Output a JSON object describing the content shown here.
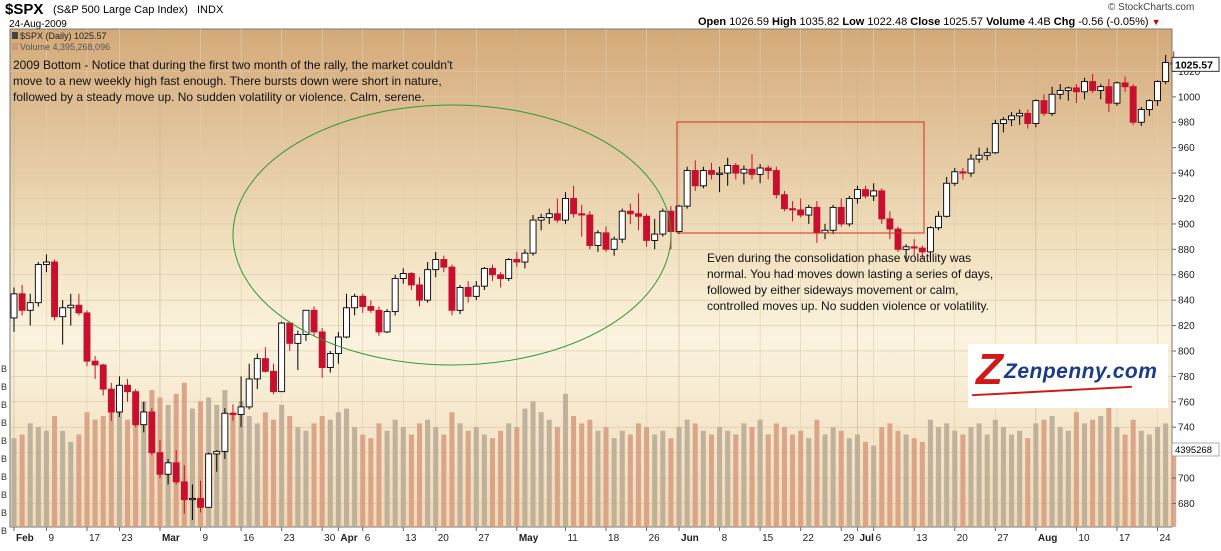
{
  "header": {
    "symbol": "$SPX",
    "name": "(S&P 500 Large Cap Index)",
    "exchange": "INDX",
    "date": "24-Aug-2009",
    "watermark": "© StockCharts.com",
    "open_label": "Open",
    "open": "1026.59",
    "high_label": "High",
    "high": "1035.82",
    "low_label": "Low",
    "low": "1022.48",
    "close_label": "Close",
    "close": "1025.57",
    "volume_label": "Volume",
    "volume": "4.4B",
    "chg_label": "Chg",
    "chg": "-0.56 (-0.05%)"
  },
  "legend": {
    "price_line": "$SPX (Daily) 1025.57",
    "volume_line": "Volume 4,395,268,096"
  },
  "annotations": {
    "bottom_note": "2009 Bottom - Notice that during the first two month of the rally, the market couldn't move to a new weekly high fast enough. There bursts down were short in nature, followed by a steady move up. No sudden volatility or violence. Calm, serene.",
    "consolidation_note": "Even during the consolidation phase volatility was normal. You had moves down lasting a series of days, followed by either sideways movement or calm, controlled moves up. No sudden violence or volatility."
  },
  "logo": {
    "text": "Zenpenny.com"
  },
  "chart_data": {
    "type": "candlestick",
    "y_ticks": [
      680,
      700,
      720,
      740,
      760,
      780,
      800,
      820,
      840,
      860,
      880,
      900,
      920,
      940,
      960,
      980,
      1000,
      1020
    ],
    "ylim": [
      667,
      1040
    ],
    "last_price_label": "1025.57",
    "volume_label": "4395268",
    "volume_axis_labels": [
      "B",
      "B",
      "B",
      "B",
      "B",
      "B",
      "B",
      "B",
      "B",
      "B"
    ],
    "x_tick_labels": [
      {
        "label": "Feb",
        "bold": true,
        "i": 0
      },
      {
        "label": "9",
        "bold": false,
        "i": 4
      },
      {
        "label": "17",
        "bold": false,
        "i": 9
      },
      {
        "label": "23",
        "bold": false,
        "i": 13
      },
      {
        "label": "Mar",
        "bold": true,
        "i": 18
      },
      {
        "label": "9",
        "bold": false,
        "i": 23
      },
      {
        "label": "16",
        "bold": false,
        "i": 28
      },
      {
        "label": "23",
        "bold": false,
        "i": 33
      },
      {
        "label": "30",
        "bold": false,
        "i": 38
      },
      {
        "label": "Apr",
        "bold": true,
        "i": 40
      },
      {
        "label": "6",
        "bold": false,
        "i": 43
      },
      {
        "label": "13",
        "bold": false,
        "i": 48
      },
      {
        "label": "20",
        "bold": false,
        "i": 52
      },
      {
        "label": "27",
        "bold": false,
        "i": 57
      },
      {
        "label": "May",
        "bold": true,
        "i": 62
      },
      {
        "label": "11",
        "bold": false,
        "i": 68
      },
      {
        "label": "18",
        "bold": false,
        "i": 73
      },
      {
        "label": "26",
        "bold": false,
        "i": 78
      },
      {
        "label": "Jun",
        "bold": true,
        "i": 82
      },
      {
        "label": "8",
        "bold": false,
        "i": 87
      },
      {
        "label": "15",
        "bold": false,
        "i": 92
      },
      {
        "label": "22",
        "bold": false,
        "i": 97
      },
      {
        "label": "29",
        "bold": false,
        "i": 102
      },
      {
        "label": "Jul",
        "bold": true,
        "i": 104
      },
      {
        "label": "6",
        "bold": false,
        "i": 106
      },
      {
        "label": "13",
        "bold": false,
        "i": 111
      },
      {
        "label": "20",
        "bold": false,
        "i": 116
      },
      {
        "label": "27",
        "bold": false,
        "i": 121
      },
      {
        "label": "Aug",
        "bold": true,
        "i": 126
      },
      {
        "label": "10",
        "bold": false,
        "i": 131
      },
      {
        "label": "17",
        "bold": false,
        "i": 136
      },
      {
        "label": "24",
        "bold": false,
        "i": 141
      }
    ],
    "candles": [
      {
        "o": 826,
        "h": 850,
        "l": 815,
        "c": 845,
        "v": 4.8
      },
      {
        "o": 845,
        "h": 852,
        "l": 828,
        "c": 832,
        "v": 5.0
      },
      {
        "o": 832,
        "h": 845,
        "l": 820,
        "c": 838,
        "v": 5.6
      },
      {
        "o": 838,
        "h": 870,
        "l": 835,
        "c": 868,
        "v": 5.4
      },
      {
        "o": 868,
        "h": 876,
        "l": 862,
        "c": 870,
        "v": 5.2
      },
      {
        "o": 870,
        "h": 872,
        "l": 824,
        "c": 827,
        "v": 6.0
      },
      {
        "o": 827,
        "h": 840,
        "l": 805,
        "c": 834,
        "v": 5.2
      },
      {
        "o": 834,
        "h": 845,
        "l": 820,
        "c": 836,
        "v": 4.6
      },
      {
        "o": 836,
        "h": 845,
        "l": 828,
        "c": 830,
        "v": 5.0
      },
      {
        "o": 830,
        "h": 832,
        "l": 788,
        "c": 792,
        "v": 6.2
      },
      {
        "o": 792,
        "h": 796,
        "l": 778,
        "c": 789,
        "v": 5.8
      },
      {
        "o": 789,
        "h": 790,
        "l": 765,
        "c": 770,
        "v": 6.0
      },
      {
        "o": 770,
        "h": 775,
        "l": 745,
        "c": 752,
        "v": 7.0
      },
      {
        "o": 752,
        "h": 780,
        "l": 748,
        "c": 773,
        "v": 6.2
      },
      {
        "o": 773,
        "h": 778,
        "l": 760,
        "c": 768,
        "v": 5.8
      },
      {
        "o": 768,
        "h": 770,
        "l": 740,
        "c": 742,
        "v": 6.4
      },
      {
        "o": 742,
        "h": 760,
        "l": 736,
        "c": 752,
        "v": 6.8
      },
      {
        "o": 752,
        "h": 755,
        "l": 718,
        "c": 720,
        "v": 7.4
      },
      {
        "o": 720,
        "h": 730,
        "l": 700,
        "c": 703,
        "v": 7.0
      },
      {
        "o": 703,
        "h": 715,
        "l": 695,
        "c": 712,
        "v": 6.6
      },
      {
        "o": 712,
        "h": 722,
        "l": 695,
        "c": 697,
        "v": 7.2
      },
      {
        "o": 697,
        "h": 710,
        "l": 672,
        "c": 683,
        "v": 7.8
      },
      {
        "o": 683,
        "h": 695,
        "l": 667,
        "c": 684,
        "v": 6.4
      },
      {
        "o": 684,
        "h": 698,
        "l": 673,
        "c": 677,
        "v": 6.8
      },
      {
        "o": 677,
        "h": 720,
        "l": 677,
        "c": 719,
        "v": 7.0
      },
      {
        "o": 719,
        "h": 722,
        "l": 705,
        "c": 721,
        "v": 6.6
      },
      {
        "o": 721,
        "h": 755,
        "l": 715,
        "c": 751,
        "v": 7.4
      },
      {
        "o": 751,
        "h": 758,
        "l": 745,
        "c": 750,
        "v": 6.2
      },
      {
        "o": 750,
        "h": 780,
        "l": 740,
        "c": 756,
        "v": 6.8
      },
      {
        "o": 756,
        "h": 790,
        "l": 754,
        "c": 778,
        "v": 6.0
      },
      {
        "o": 778,
        "h": 798,
        "l": 770,
        "c": 794,
        "v": 5.6
      },
      {
        "o": 794,
        "h": 803,
        "l": 783,
        "c": 784,
        "v": 6.2
      },
      {
        "o": 784,
        "h": 790,
        "l": 766,
        "c": 768,
        "v": 5.8
      },
      {
        "o": 768,
        "h": 823,
        "l": 768,
        "c": 822,
        "v": 6.6
      },
      {
        "o": 822,
        "h": 823,
        "l": 800,
        "c": 806,
        "v": 6.0
      },
      {
        "o": 806,
        "h": 816,
        "l": 785,
        "c": 813,
        "v": 5.4
      },
      {
        "o": 813,
        "h": 832,
        "l": 808,
        "c": 832,
        "v": 5.2
      },
      {
        "o": 832,
        "h": 835,
        "l": 812,
        "c": 815,
        "v": 5.6
      },
      {
        "o": 815,
        "h": 818,
        "l": 779,
        "c": 787,
        "v": 6.0
      },
      {
        "o": 787,
        "h": 800,
        "l": 783,
        "c": 798,
        "v": 5.8
      },
      {
        "o": 798,
        "h": 815,
        "l": 790,
        "c": 811,
        "v": 6.2
      },
      {
        "o": 811,
        "h": 845,
        "l": 810,
        "c": 834,
        "v": 6.4
      },
      {
        "o": 834,
        "h": 845,
        "l": 828,
        "c": 843,
        "v": 5.4
      },
      {
        "o": 843,
        "h": 845,
        "l": 830,
        "c": 835,
        "v": 5.0
      },
      {
        "o": 835,
        "h": 840,
        "l": 830,
        "c": 832,
        "v": 4.8
      },
      {
        "o": 832,
        "h": 835,
        "l": 812,
        "c": 815,
        "v": 5.6
      },
      {
        "o": 815,
        "h": 833,
        "l": 814,
        "c": 831,
        "v": 5.2
      },
      {
        "o": 831,
        "h": 860,
        "l": 828,
        "c": 857,
        "v": 5.8
      },
      {
        "o": 857,
        "h": 865,
        "l": 853,
        "c": 861,
        "v": 5.4
      },
      {
        "o": 861,
        "h": 862,
        "l": 848,
        "c": 852,
        "v": 5.0
      },
      {
        "o": 852,
        "h": 858,
        "l": 835,
        "c": 840,
        "v": 5.6
      },
      {
        "o": 840,
        "h": 870,
        "l": 838,
        "c": 864,
        "v": 5.8
      },
      {
        "o": 864,
        "h": 878,
        "l": 858,
        "c": 872,
        "v": 5.4
      },
      {
        "o": 872,
        "h": 875,
        "l": 862,
        "c": 866,
        "v": 5.0
      },
      {
        "o": 866,
        "h": 868,
        "l": 828,
        "c": 832,
        "v": 6.2
      },
      {
        "o": 832,
        "h": 852,
        "l": 829,
        "c": 850,
        "v": 5.6
      },
      {
        "o": 850,
        "h": 855,
        "l": 838,
        "c": 843,
        "v": 5.2
      },
      {
        "o": 843,
        "h": 855,
        "l": 840,
        "c": 851,
        "v": 5.4
      },
      {
        "o": 851,
        "h": 866,
        "l": 848,
        "c": 865,
        "v": 5.0
      },
      {
        "o": 865,
        "h": 868,
        "l": 855,
        "c": 860,
        "v": 4.8
      },
      {
        "o": 860,
        "h": 862,
        "l": 850,
        "c": 857,
        "v": 5.2
      },
      {
        "o": 857,
        "h": 873,
        "l": 855,
        "c": 872,
        "v": 5.6
      },
      {
        "o": 872,
        "h": 878,
        "l": 866,
        "c": 870,
        "v": 5.4
      },
      {
        "o": 870,
        "h": 880,
        "l": 865,
        "c": 877,
        "v": 6.4
      },
      {
        "o": 877,
        "h": 907,
        "l": 875,
        "c": 903,
        "v": 6.8
      },
      {
        "o": 903,
        "h": 908,
        "l": 895,
        "c": 905,
        "v": 6.2
      },
      {
        "o": 905,
        "h": 912,
        "l": 900,
        "c": 908,
        "v": 5.8
      },
      {
        "o": 908,
        "h": 920,
        "l": 901,
        "c": 903,
        "v": 5.4
      },
      {
        "o": 903,
        "h": 925,
        "l": 900,
        "c": 920,
        "v": 7.2
      },
      {
        "o": 920,
        "h": 930,
        "l": 905,
        "c": 908,
        "v": 6.0
      },
      {
        "o": 908,
        "h": 915,
        "l": 890,
        "c": 907,
        "v": 5.6
      },
      {
        "o": 907,
        "h": 910,
        "l": 880,
        "c": 883,
        "v": 5.8
      },
      {
        "o": 883,
        "h": 895,
        "l": 878,
        "c": 893,
        "v": 5.2
      },
      {
        "o": 893,
        "h": 898,
        "l": 878,
        "c": 880,
        "v": 5.4
      },
      {
        "o": 880,
        "h": 890,
        "l": 875,
        "c": 888,
        "v": 4.8
      },
      {
        "o": 888,
        "h": 912,
        "l": 885,
        "c": 910,
        "v": 5.2
      },
      {
        "o": 910,
        "h": 916,
        "l": 900,
        "c": 908,
        "v": 5.0
      },
      {
        "o": 908,
        "h": 924,
        "l": 895,
        "c": 906,
        "v": 5.6
      },
      {
        "o": 906,
        "h": 908,
        "l": 882,
        "c": 887,
        "v": 5.4
      },
      {
        "o": 887,
        "h": 904,
        "l": 880,
        "c": 892,
        "v": 5.0
      },
      {
        "o": 892,
        "h": 912,
        "l": 890,
        "c": 910,
        "v": 5.2
      },
      {
        "o": 910,
        "h": 914,
        "l": 880,
        "c": 894,
        "v": 4.8
      },
      {
        "o": 894,
        "h": 915,
        "l": 892,
        "c": 914,
        "v": 5.4
      },
      {
        "o": 914,
        "h": 945,
        "l": 912,
        "c": 942,
        "v": 5.8
      },
      {
        "o": 942,
        "h": 950,
        "l": 926,
        "c": 930,
        "v": 5.6
      },
      {
        "o": 930,
        "h": 945,
        "l": 928,
        "c": 942,
        "v": 5.2
      },
      {
        "o": 942,
        "h": 948,
        "l": 935,
        "c": 939,
        "v": 5.0
      },
      {
        "o": 939,
        "h": 945,
        "l": 925,
        "c": 940,
        "v": 5.4
      },
      {
        "o": 940,
        "h": 952,
        "l": 930,
        "c": 946,
        "v": 5.2
      },
      {
        "o": 946,
        "h": 948,
        "l": 935,
        "c": 940,
        "v": 5.0
      },
      {
        "o": 940,
        "h": 946,
        "l": 931,
        "c": 943,
        "v": 5.6
      },
      {
        "o": 943,
        "h": 955,
        "l": 935,
        "c": 939,
        "v": 5.4
      },
      {
        "o": 939,
        "h": 947,
        "l": 932,
        "c": 944,
        "v": 5.8
      },
      {
        "o": 944,
        "h": 946,
        "l": 935,
        "c": 942,
        "v": 5.0
      },
      {
        "o": 942,
        "h": 945,
        "l": 920,
        "c": 923,
        "v": 5.6
      },
      {
        "o": 923,
        "h": 926,
        "l": 910,
        "c": 912,
        "v": 5.4
      },
      {
        "o": 912,
        "h": 918,
        "l": 902,
        "c": 911,
        "v": 5.0
      },
      {
        "o": 911,
        "h": 920,
        "l": 905,
        "c": 907,
        "v": 5.2
      },
      {
        "o": 907,
        "h": 915,
        "l": 900,
        "c": 913,
        "v": 4.8
      },
      {
        "o": 913,
        "h": 918,
        "l": 885,
        "c": 893,
        "v": 5.8
      },
      {
        "o": 893,
        "h": 900,
        "l": 888,
        "c": 895,
        "v": 5.0
      },
      {
        "o": 895,
        "h": 915,
        "l": 892,
        "c": 913,
        "v": 5.4
      },
      {
        "o": 913,
        "h": 920,
        "l": 898,
        "c": 900,
        "v": 5.2
      },
      {
        "o": 900,
        "h": 922,
        "l": 898,
        "c": 920,
        "v": 4.8
      },
      {
        "o": 920,
        "h": 930,
        "l": 916,
        "c": 927,
        "v": 5.0
      },
      {
        "o": 927,
        "h": 930,
        "l": 920,
        "c": 922,
        "v": 4.6
      },
      {
        "o": 922,
        "h": 932,
        "l": 918,
        "c": 926,
        "v": 4.4
      },
      {
        "o": 926,
        "h": 928,
        "l": 900,
        "c": 904,
        "v": 5.4
      },
      {
        "o": 904,
        "h": 910,
        "l": 888,
        "c": 896,
        "v": 5.6
      },
      {
        "o": 896,
        "h": 898,
        "l": 878,
        "c": 880,
        "v": 5.2
      },
      {
        "o": 880,
        "h": 884,
        "l": 870,
        "c": 882,
        "v": 5.0
      },
      {
        "o": 882,
        "h": 888,
        "l": 875,
        "c": 881,
        "v": 4.8
      },
      {
        "o": 881,
        "h": 883,
        "l": 872,
        "c": 878,
        "v": 4.6
      },
      {
        "o": 878,
        "h": 898,
        "l": 873,
        "c": 897,
        "v": 5.8
      },
      {
        "o": 897,
        "h": 910,
        "l": 895,
        "c": 906,
        "v": 5.4
      },
      {
        "o": 906,
        "h": 937,
        "l": 905,
        "c": 932,
        "v": 5.6
      },
      {
        "o": 932,
        "h": 944,
        "l": 930,
        "c": 941,
        "v": 5.2
      },
      {
        "o": 941,
        "h": 944,
        "l": 935,
        "c": 940,
        "v": 5.0
      },
      {
        "o": 940,
        "h": 955,
        "l": 937,
        "c": 951,
        "v": 5.4
      },
      {
        "o": 951,
        "h": 960,
        "l": 948,
        "c": 954,
        "v": 5.6
      },
      {
        "o": 954,
        "h": 960,
        "l": 950,
        "c": 956,
        "v": 5.0
      },
      {
        "o": 956,
        "h": 982,
        "l": 955,
        "c": 979,
        "v": 5.8
      },
      {
        "o": 979,
        "h": 984,
        "l": 972,
        "c": 982,
        "v": 5.4
      },
      {
        "o": 982,
        "h": 988,
        "l": 977,
        "c": 985,
        "v": 5.0
      },
      {
        "o": 985,
        "h": 990,
        "l": 978,
        "c": 987,
        "v": 5.2
      },
      {
        "o": 987,
        "h": 990,
        "l": 975,
        "c": 979,
        "v": 4.8
      },
      {
        "o": 979,
        "h": 998,
        "l": 976,
        "c": 997,
        "v": 5.6
      },
      {
        "o": 997,
        "h": 1002,
        "l": 985,
        "c": 987,
        "v": 5.8
      },
      {
        "o": 987,
        "h": 1008,
        "l": 985,
        "c": 1002,
        "v": 6.0
      },
      {
        "o": 1002,
        "h": 1010,
        "l": 998,
        "c": 1005,
        "v": 5.4
      },
      {
        "o": 1005,
        "h": 1008,
        "l": 997,
        "c": 1007,
        "v": 5.2
      },
      {
        "o": 1007,
        "h": 1010,
        "l": 995,
        "c": 1004,
        "v": 6.2
      },
      {
        "o": 1004,
        "h": 1015,
        "l": 998,
        "c": 1012,
        "v": 5.6
      },
      {
        "o": 1012,
        "h": 1018,
        "l": 1003,
        "c": 1005,
        "v": 5.8
      },
      {
        "o": 1005,
        "h": 1010,
        "l": 998,
        "c": 1008,
        "v": 6.0
      },
      {
        "o": 1008,
        "h": 1014,
        "l": 988,
        "c": 995,
        "v": 7.0
      },
      {
        "o": 995,
        "h": 1012,
        "l": 993,
        "c": 1011,
        "v": 5.4
      },
      {
        "o": 1011,
        "h": 1016,
        "l": 1004,
        "c": 1008,
        "v": 5.0
      },
      {
        "o": 1008,
        "h": 1010,
        "l": 978,
        "c": 980,
        "v": 5.8
      },
      {
        "o": 980,
        "h": 992,
        "l": 977,
        "c": 990,
        "v": 5.2
      },
      {
        "o": 990,
        "h": 998,
        "l": 985,
        "c": 997,
        "v": 5.0
      },
      {
        "o": 997,
        "h": 1013,
        "l": 993,
        "c": 1012,
        "v": 5.4
      },
      {
        "o": 1012,
        "h": 1033,
        "l": 1010,
        "c": 1027,
        "v": 5.6
      },
      {
        "o": 1026.59,
        "h": 1035.82,
        "l": 1022.48,
        "c": 1025.57,
        "v": 4.4
      }
    ]
  }
}
